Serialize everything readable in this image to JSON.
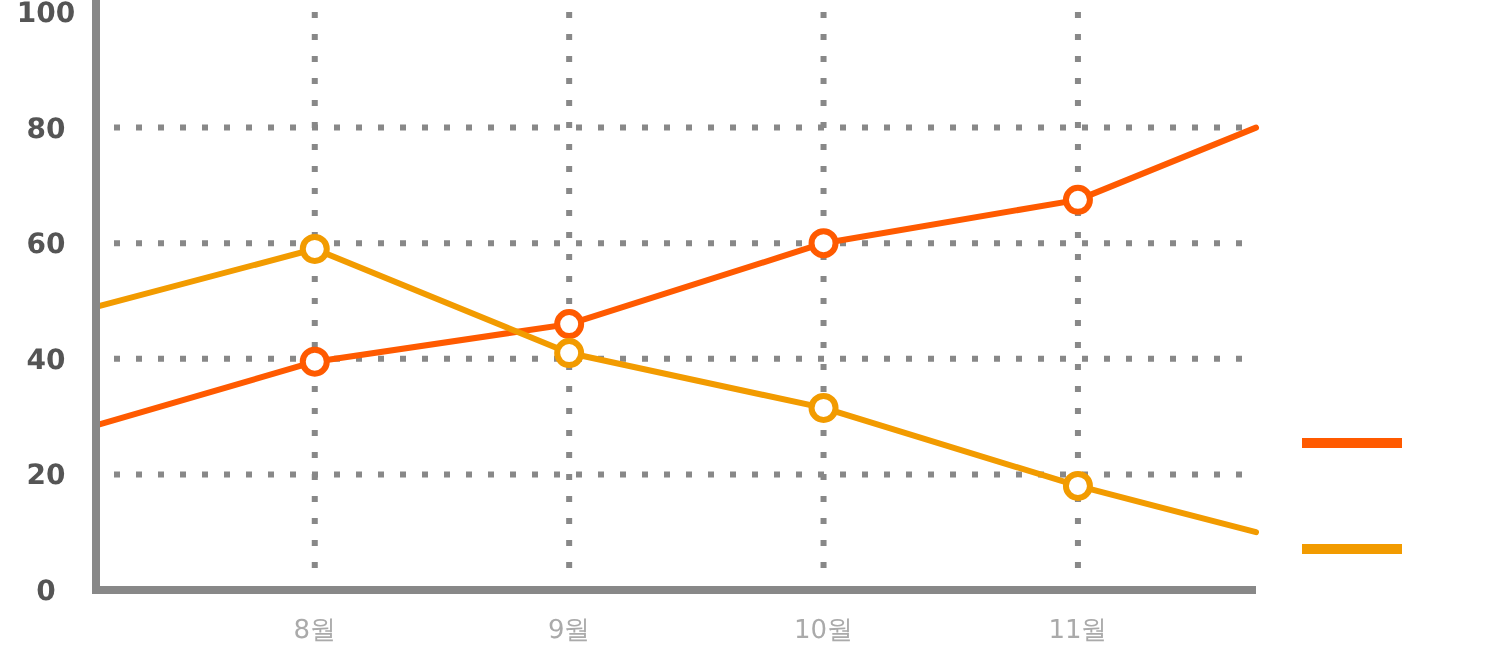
{
  "chart_data": {
    "type": "line",
    "x": [
      7.14,
      8,
      9,
      10,
      11,
      11.7
    ],
    "xlim": [
      7.14,
      11.7
    ],
    "xticks": [
      {
        "value": 8,
        "label": "8월"
      },
      {
        "value": 9,
        "label": "9월"
      },
      {
        "value": 10,
        "label": "10월"
      },
      {
        "value": 11,
        "label": "11월"
      }
    ],
    "ylim": [
      0,
      100
    ],
    "yticks": [
      0,
      20,
      40,
      60,
      80,
      100
    ],
    "grid": true,
    "marker": "circle",
    "line_style": "solid",
    "series": [
      {
        "color": "#ff5a00",
        "values": [
          28.5,
          39.5,
          46,
          60,
          67.5,
          80
        ]
      },
      {
        "color": "#f29b00",
        "values": [
          49,
          59,
          41,
          31.5,
          18,
          10
        ]
      }
    ]
  }
}
